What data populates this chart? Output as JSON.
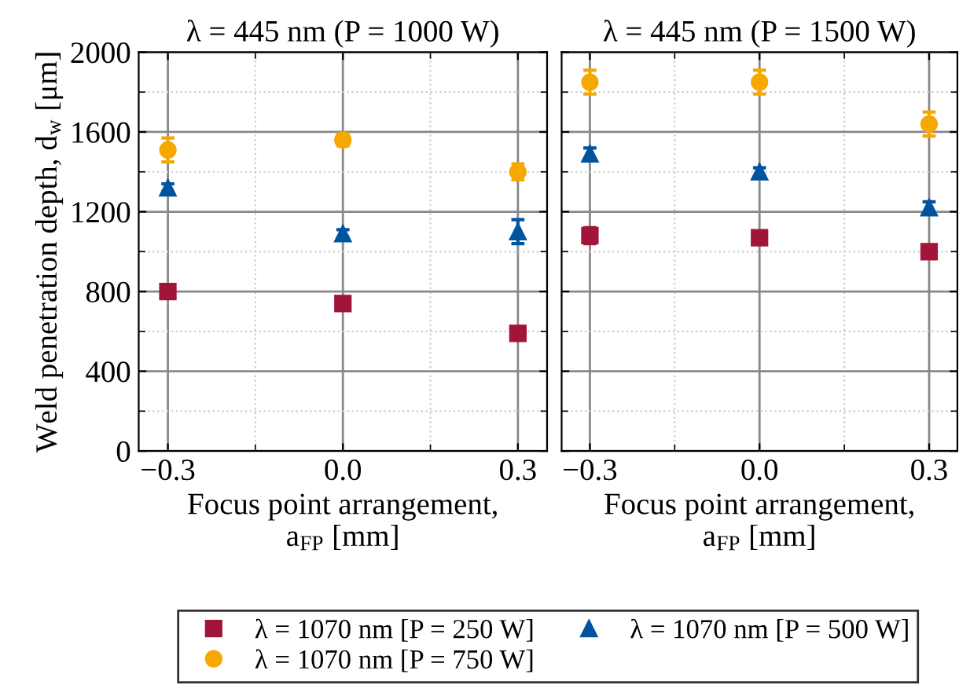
{
  "chart_data": [
    {
      "type": "scatter",
      "title": "λ = 445 nm (P = 1000 W)",
      "xlabel": "Focus point arrangement,\na$_{FP}$ [mm]",
      "ylabel": "Weld penetration depth, d$_{w}$ [μm]",
      "x": [
        -0.3,
        0.0,
        0.3
      ],
      "xlim": [
        -0.35,
        0.35
      ],
      "xticks": [
        {
          "value": -0.3,
          "label": "−0.3"
        },
        {
          "value": -0.15,
          "label": null
        },
        {
          "value": 0.0,
          "label": "0.0"
        },
        {
          "value": 0.15,
          "label": null
        },
        {
          "value": 0.3,
          "label": "0.3"
        }
      ],
      "ylim": [
        0,
        2000
      ],
      "yticks": [
        0,
        {
          "value": 200,
          "label": null
        },
        400,
        {
          "value": 600,
          "label": null
        },
        800,
        {
          "value": 1000,
          "label": null
        },
        1200,
        {
          "value": 1400,
          "label": null
        },
        1600,
        {
          "value": 1800,
          "label": null
        },
        2000
      ],
      "grid": true,
      "legend": "bottom",
      "series": [
        {
          "name": "λ = 1070 nm [P = 250 W]",
          "color": "#a11538",
          "marker": "square",
          "values": [
            800,
            740,
            590
          ],
          "errors": [
            20,
            15,
            15
          ]
        },
        {
          "name": "λ = 1070 nm [P = 750 W]",
          "color": "#f6a800",
          "marker": "circle",
          "values": [
            1510,
            1560,
            1400
          ],
          "errors": [
            60,
            30,
            40
          ]
        },
        {
          "name": "λ = 1070 nm [P = 500 W]",
          "color": "#00549f",
          "marker": "triangle",
          "values": [
            1320,
            1090,
            1100
          ],
          "errors": [
            20,
            20,
            60
          ]
        }
      ]
    },
    {
      "type": "scatter",
      "title": "λ = 445 nm (P = 1500 W)",
      "xlabel": "Focus point arrangement,\na$_{FP}$ [mm]",
      "tick_labels": "x",
      "x": [
        -0.3,
        0.0,
        0.3
      ],
      "xlim": [
        -0.35,
        0.35
      ],
      "xticks": [
        {
          "value": -0.3,
          "label": "−0.3"
        },
        {
          "value": -0.15,
          "label": null
        },
        {
          "value": 0.0,
          "label": "0.0"
        },
        {
          "value": 0.15,
          "label": null
        },
        {
          "value": 0.3,
          "label": "0.3"
        }
      ],
      "ylim": [
        0,
        2000
      ],
      "yticks": [
        0,
        {
          "value": 200,
          "label": null
        },
        400,
        {
          "value": 600,
          "label": null
        },
        800,
        {
          "value": 1000,
          "label": null
        },
        1200,
        {
          "value": 1400,
          "label": null
        },
        1600,
        {
          "value": 1800,
          "label": null
        },
        2000
      ],
      "grid": true,
      "series": [
        {
          "name": "λ = 1070 nm [P = 250 W]",
          "color": "#a11538",
          "marker": "square",
          "values": [
            1080,
            1070,
            1000
          ],
          "errors": [
            40,
            30,
            20
          ]
        },
        {
          "name": "λ = 1070 nm [P = 750 W]",
          "color": "#f6a800",
          "marker": "circle",
          "values": [
            1850,
            1850,
            1640
          ],
          "errors": [
            60,
            60,
            60
          ]
        },
        {
          "name": "λ = 1070 nm [P = 500 W]",
          "color": "#00549f",
          "marker": "triangle",
          "values": [
            1490,
            1400,
            1220
          ],
          "errors": [
            30,
            20,
            30
          ]
        }
      ]
    }
  ]
}
